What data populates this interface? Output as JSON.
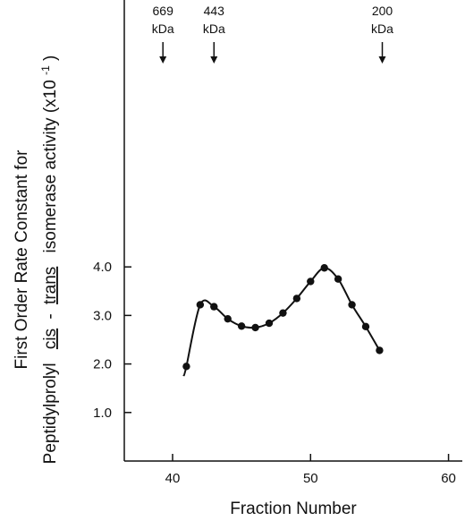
{
  "chart_data": {
    "type": "line",
    "xlabel": "Fraction Number",
    "ylabel_line1": "First Order Rate Constant for",
    "ylabel_line2_prefix": "Peptidylprolyl",
    "ylabel_line2_cis": "cis",
    "ylabel_line2_dash": "-",
    "ylabel_line2_trans": "trans",
    "ylabel_line2_suffix": "isomerase activity (x10",
    "ylabel_line2_exponent": "-1",
    "ylabel_line2_close": ")",
    "xlim": [
      36.5,
      61
    ],
    "ylim": [
      0,
      9.5
    ],
    "x_ticks": [
      40,
      50,
      60
    ],
    "x_tick_labels": [
      "40",
      "50",
      "60"
    ],
    "y_ticks": [
      1.0,
      2.0,
      3.0,
      4.0
    ],
    "y_tick_labels": [
      "1.0",
      "2.0",
      "3.0",
      "4.0"
    ],
    "series": [
      {
        "x": [
          41,
          42,
          43,
          44,
          45,
          46,
          47,
          48,
          49,
          50,
          51,
          52,
          53,
          54,
          55
        ],
        "y": [
          1.95,
          3.22,
          3.18,
          2.93,
          2.78,
          2.75,
          2.84,
          3.05,
          3.35,
          3.7,
          3.98,
          3.75,
          3.22,
          2.77,
          2.28
        ]
      }
    ],
    "curve_start": {
      "x": 40.8,
      "y": 1.75
    },
    "markers": [
      {
        "line1": "669",
        "line2": "kDa",
        "x": 39.3
      },
      {
        "line1": "443",
        "line2": "kDa",
        "x": 43.0
      },
      {
        "line1": "200",
        "line2": "kDa",
        "x": 55.2
      }
    ]
  }
}
